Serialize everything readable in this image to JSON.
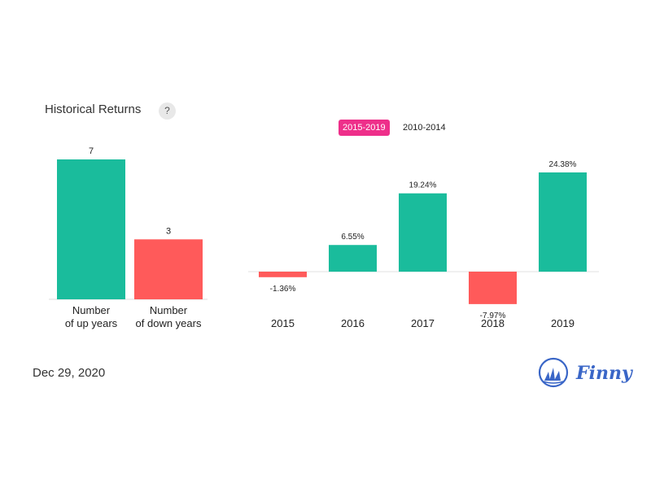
{
  "header": {
    "title": "Historical Returns",
    "help_label": "?"
  },
  "tabs": [
    {
      "label": "2015-2019",
      "active": true
    },
    {
      "label": "2010-2014",
      "active": false
    }
  ],
  "footer": {
    "date": "Dec 29, 2020",
    "brand": "Finny"
  },
  "colors": {
    "positive": "#1abc9c",
    "negative": "#ff5a5a",
    "tab_active": "#ee2f8a",
    "brand": "#3a66c7"
  },
  "chart_data": [
    {
      "type": "bar",
      "categories": [
        "Number\nof up years",
        "Number\nof down years"
      ],
      "values": [
        7,
        3
      ],
      "value_labels": [
        "7",
        "3"
      ],
      "ylim": [
        0,
        7
      ]
    },
    {
      "type": "bar",
      "categories": [
        "2015",
        "2016",
        "2017",
        "2018",
        "2019"
      ],
      "values": [
        -1.36,
        6.55,
        19.24,
        -7.97,
        24.38
      ],
      "value_labels": [
        "-1.36%",
        "6.55%",
        "19.24%",
        "-7.97%",
        "24.38%"
      ],
      "ylabel": "",
      "xlabel": ""
    }
  ]
}
